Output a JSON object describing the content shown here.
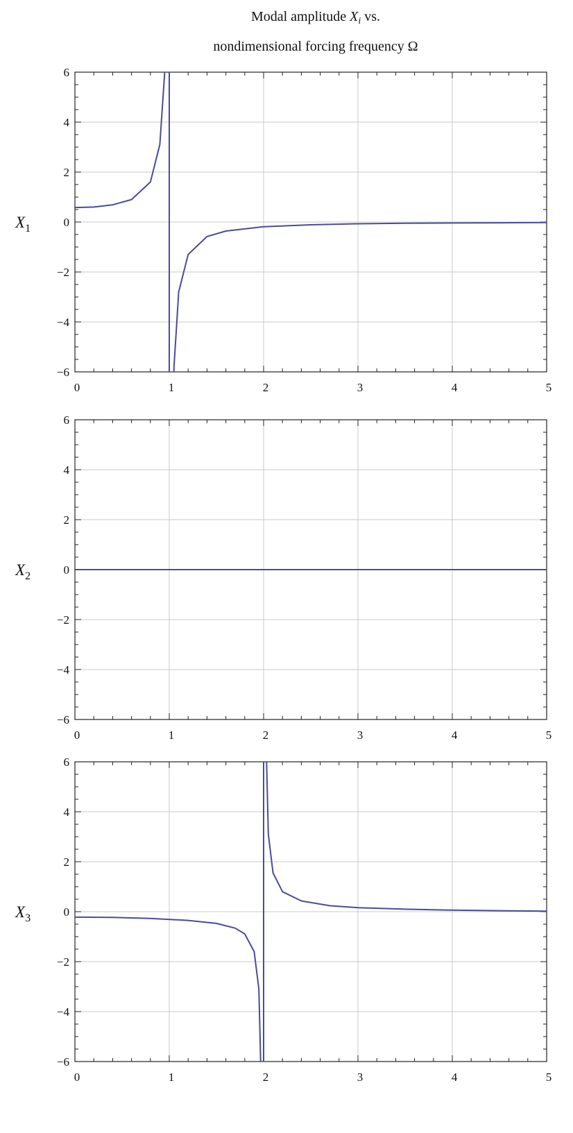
{
  "title": {
    "line1_a": "Modal amplitude ",
    "line1_var": "X",
    "line1_sub": "i",
    "line1_b": " vs.",
    "line2": "nondimensional forcing frequency Ω"
  },
  "colors": {
    "curve": "#4a4a9a",
    "grid": "#c9c9c9",
    "frame": "#222222"
  },
  "chart_data": [
    {
      "type": "line",
      "ylabel": "X",
      "ylabel_sub": "1",
      "xlim": [
        0,
        5
      ],
      "ylim": [
        -6,
        6
      ],
      "xticks": [
        0,
        1,
        2,
        3,
        4,
        5
      ],
      "yticks": [
        -6,
        -4,
        -2,
        0,
        2,
        4,
        6
      ],
      "grid": true,
      "asymptote": 1,
      "series": [
        {
          "x": [
            0,
            0.2,
            0.4,
            0.6,
            0.8,
            0.9,
            0.95,
            0.98,
            1.02,
            1.05,
            1.1,
            1.2,
            1.4,
            1.6,
            2,
            2.5,
            3,
            3.5,
            4,
            4.5,
            5
          ],
          "y": [
            0.58,
            0.6,
            0.69,
            0.9,
            1.6,
            3.1,
            5.9,
            14.6,
            -14.5,
            -5.8,
            -2.8,
            -1.3,
            -0.58,
            -0.36,
            -0.19,
            -0.11,
            -0.07,
            -0.05,
            -0.04,
            -0.03,
            -0.02
          ]
        }
      ]
    },
    {
      "type": "line",
      "ylabel": "X",
      "ylabel_sub": "2",
      "xlim": [
        0,
        5
      ],
      "ylim": [
        -6,
        6
      ],
      "xticks": [
        0,
        1,
        2,
        3,
        4,
        5
      ],
      "yticks": [
        -6,
        -4,
        -2,
        0,
        2,
        4,
        6
      ],
      "grid": true,
      "series": [
        {
          "x": [
            0,
            5
          ],
          "y": [
            0,
            0
          ]
        }
      ]
    },
    {
      "type": "line",
      "ylabel": "X",
      "ylabel_sub": "3",
      "xlim": [
        0,
        5
      ],
      "ylim": [
        -6,
        6
      ],
      "xticks": [
        0,
        1,
        2,
        3,
        4,
        5
      ],
      "yticks": [
        -6,
        -4,
        -2,
        0,
        2,
        4,
        6
      ],
      "grid": true,
      "asymptote": 2,
      "series": [
        {
          "x": [
            0,
            0.4,
            0.8,
            1.2,
            1.5,
            1.7,
            1.8,
            1.9,
            1.95,
            1.98,
            2.02,
            2.05,
            2.1,
            2.2,
            2.4,
            2.7,
            3,
            3.5,
            4,
            4.5,
            5
          ],
          "y": [
            -0.22,
            -0.23,
            -0.27,
            -0.35,
            -0.47,
            -0.66,
            -0.89,
            -1.6,
            -3.1,
            -7.8,
            7.8,
            3.1,
            1.55,
            0.8,
            0.43,
            0.24,
            0.16,
            0.1,
            0.06,
            0.04,
            0.02
          ]
        }
      ]
    }
  ]
}
